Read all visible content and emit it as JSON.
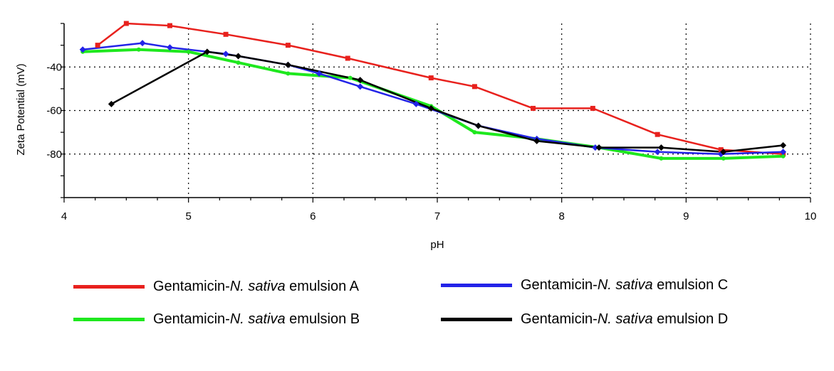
{
  "chart_data": {
    "type": "line",
    "xlabel": "pH",
    "ylabel": "Zeta Potential (mV)",
    "xlim": [
      4,
      10
    ],
    "ylim": [
      -100,
      -20
    ],
    "xticks": [
      "4",
      "5",
      "6",
      "7",
      "8",
      "9",
      "10"
    ],
    "yticks": [
      "-40",
      "-60",
      "-80"
    ],
    "grid": "dotted",
    "legend_position": "bottom",
    "series": [
      {
        "name_prefix": "Gentamicin-",
        "name_italic": "N. sativa",
        "name_suffix": " emulsion A",
        "color": "#e8211d",
        "marker": "square",
        "x": [
          4.27,
          4.5,
          4.85,
          5.3,
          5.8,
          6.28,
          6.95,
          7.3,
          7.77,
          8.25,
          8.77,
          9.28,
          9.78
        ],
        "y": [
          -30,
          -20,
          -21,
          -25,
          -30,
          -36,
          -45,
          -49,
          -59,
          -59,
          -71,
          -78,
          -80
        ]
      },
      {
        "name_prefix": "Gentamicin-",
        "name_italic": "N. sativa",
        "name_suffix": " emulsion B",
        "color": "#1ee81e",
        "marker": "circle",
        "x": [
          4.15,
          4.6,
          5.0,
          5.4,
          5.8,
          6.3,
          6.95,
          7.3,
          7.8,
          8.3,
          8.8,
          9.3,
          9.78
        ],
        "y": [
          -33,
          -32,
          -33,
          -38,
          -43,
          -45,
          -58,
          -70,
          -73,
          -77,
          -82,
          -82,
          -81
        ]
      },
      {
        "name_prefix": "Gentamicin-",
        "name_italic": "N. sativa",
        "name_suffix": " emulsion C",
        "color": "#2323e8",
        "marker": "diamond",
        "x": [
          4.15,
          4.63,
          4.85,
          5.3,
          5.8,
          6.05,
          6.38,
          6.83,
          7.33,
          7.8,
          8.27,
          8.77,
          9.28,
          9.78
        ],
        "y": [
          -32,
          -29,
          -31,
          -34,
          -39,
          -43,
          -49,
          -57,
          -67,
          -73,
          -77,
          -79,
          -80,
          -79
        ]
      },
      {
        "name_prefix": "Gentamicin-",
        "name_italic": "N. sativa",
        "name_suffix": " emulsion D",
        "color": "#000000",
        "marker": "diamond",
        "x": [
          4.38,
          5.15,
          5.4,
          5.8,
          6.38,
          6.95,
          7.33,
          7.8,
          8.3,
          8.8,
          9.3,
          9.78
        ],
        "y": [
          -57,
          -33,
          -35,
          -39,
          -46,
          -59,
          -67,
          -74,
          -77,
          -77,
          -79,
          -76
        ]
      }
    ]
  }
}
